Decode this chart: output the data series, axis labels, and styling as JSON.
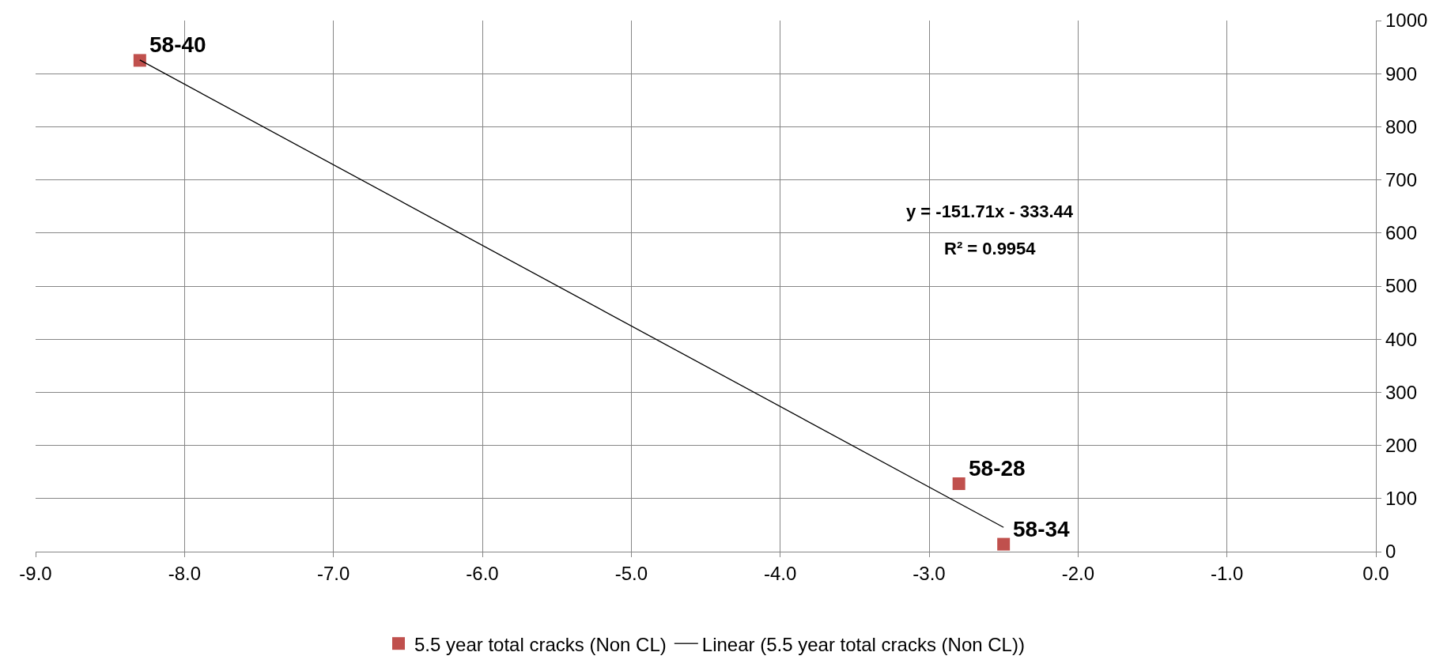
{
  "chart_data": {
    "type": "scatter",
    "x": [
      -8.3,
      -2.8,
      -2.5
    ],
    "series": [
      {
        "name": "5.5 year total cracks (Non CL)",
        "color": "#c0504d",
        "values": [
          925,
          128,
          14
        ],
        "marker": "square"
      },
      {
        "name": "Linear (5.5 year total cracks (Non CL))",
        "type": "line",
        "color": "#000000",
        "x": [
          -8.3,
          -2.5
        ],
        "values": [
          925.8,
          45.8
        ],
        "marker": "none"
      }
    ],
    "xlim": [
      -9,
      0
    ],
    "xticks": [
      {
        "value": -9,
        "label": "-9.0"
      },
      {
        "value": -8,
        "label": "-8.0"
      },
      {
        "value": -7,
        "label": "-7.0"
      },
      {
        "value": -6,
        "label": "-6.0"
      },
      {
        "value": -5,
        "label": "-5.0"
      },
      {
        "value": -4,
        "label": "-4.0"
      },
      {
        "value": -3,
        "label": "-3.0"
      },
      {
        "value": -2,
        "label": "-2.0"
      },
      {
        "value": -1,
        "label": "-1.0"
      },
      {
        "value": 0,
        "label": "0.0"
      }
    ],
    "ylim": [
      0,
      1000
    ],
    "yticks": [
      0,
      100,
      200,
      300,
      400,
      500,
      600,
      700,
      800,
      900,
      1000
    ],
    "annotations": [
      {
        "text": "58-40",
        "x": -8.3,
        "y": 925
      },
      {
        "text": "58-28",
        "x": -2.8,
        "y": 128
      },
      {
        "text": "58-34",
        "x": -2.5,
        "y": 14
      },
      "y = -151.71x - 333.44",
      "R² = 0.9954"
    ],
    "grid": true,
    "legend": "bottom"
  }
}
